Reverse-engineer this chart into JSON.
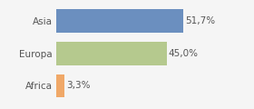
{
  "categories": [
    "Asia",
    "Europa",
    "Africa"
  ],
  "values": [
    51.7,
    45.0,
    3.3
  ],
  "bar_colors": [
    "#6b8fbf",
    "#b5c98e",
    "#f0a868"
  ],
  "labels": [
    "51,7%",
    "45,0%",
    "3,3%"
  ],
  "background_color": "#f5f5f5",
  "xlim": [
    0,
    62
  ],
  "bar_height": 0.72,
  "label_fontsize": 7.5,
  "tick_fontsize": 7.5,
  "grid_color": "#dddddd",
  "text_color": "#555555"
}
